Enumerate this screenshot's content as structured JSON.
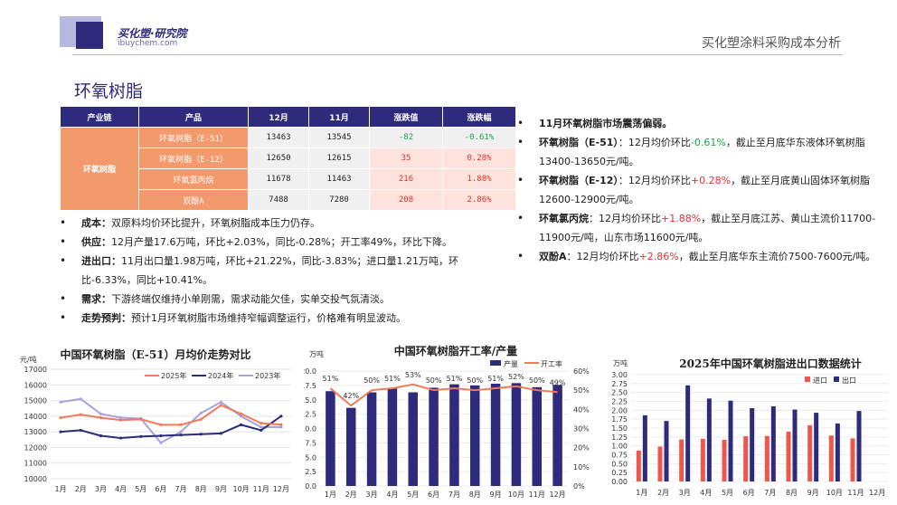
{
  "logo": {
    "name": "买化塑·研究院",
    "domain": "ibuychem.com"
  },
  "header": {
    "title": "买化塑涂料采购成本分析"
  },
  "page_title": "环氧树脂",
  "table": {
    "headers": [
      "产业链",
      "产品",
      "12月",
      "11月",
      "涨跌值",
      "涨跌幅"
    ],
    "chain": "环氧树脂",
    "rows": [
      {
        "product": "环氧树脂（E-51）",
        "dec": "13463",
        "nov": "13545",
        "chg": "-82",
        "pct": "-0.61%",
        "dir": "neg"
      },
      {
        "product": "环氧树脂（E-12）",
        "dec": "12650",
        "nov": "12615",
        "chg": "35",
        "pct": "0.28%",
        "dir": "pos"
      },
      {
        "product": "环氧氯丙烷",
        "dec": "11678",
        "nov": "11463",
        "chg": "216",
        "pct": "1.88%",
        "dir": "pos"
      },
      {
        "product": "双酚A",
        "dec": "7488",
        "nov": "7280",
        "chg": "208",
        "pct": "2.86%",
        "dir": "pos"
      }
    ]
  },
  "left_bullets": [
    {
      "label": "成本：",
      "text": "双原料均价环比提升，环氧树脂成本压力仍存。"
    },
    {
      "label": "供应：",
      "text": "12月产量17.6万吨，环比+2.03%，同比-0.28%；开工率49%，环比下降。"
    },
    {
      "label": "进出口：",
      "text": "11月出口量1.98万吨，环比+21.22%，同比-3.83%；进口量1.21万吨，环比-6.33%，同比+10.41%。"
    },
    {
      "label": "需求：",
      "text": "下游终端仅维持小单刚需，需求动能欠佳，实单交投气氛清淡。"
    },
    {
      "label": "走势预判：",
      "text": "预计1月环氧树脂市场维持窄幅调整运行，价格难有明显波动。"
    }
  ],
  "right_bullets": {
    "b1": "11月环氧树脂市场震荡偏弱。",
    "b2": {
      "label": "环氧树脂（E-51）",
      "pre": "：12月均价环比",
      "val": "-0.61%",
      "post": "，截止至月底华东液体环氧树脂13400-13650元/吨。"
    },
    "b3": {
      "label": "环氧树脂（E-12）",
      "pre": "：12月均价环比",
      "val": "+0.28%",
      "post": "，截止至月底黄山固体环氧树脂12600-12900元/吨。"
    },
    "b4": {
      "label": "环氧氯丙烷",
      "pre": "：12月均价环比",
      "val": "+1.88%",
      "post": "，截止至月底江苏、黄山主流价11700-11900元/吨，山东市场11600元/吨。"
    },
    "b5": {
      "label": "双酚A",
      "pre": "：12月均价环比",
      "val": "+2.86%",
      "post": "，截止至月底华东主流价7500-7600元/吨。"
    }
  },
  "chart_data": [
    {
      "type": "line",
      "title": "中国环氧树脂（E-51）月均价走势对比",
      "ylabel": "元/吨",
      "ylim": [
        10000,
        17000
      ],
      "categories": [
        "1月",
        "2月",
        "3月",
        "4月",
        "5月",
        "6月",
        "7月",
        "8月",
        "9月",
        "10月",
        "11月",
        "12月"
      ],
      "series": [
        {
          "name": "2025年",
          "color": "#f07a5a",
          "values": [
            13900,
            14100,
            13900,
            13750,
            13800,
            13450,
            13450,
            13800,
            14700,
            14150,
            13550,
            13460
          ]
        },
        {
          "name": "2024年",
          "color": "#2e2a7c",
          "values": [
            13000,
            13100,
            12750,
            12600,
            12700,
            12750,
            12800,
            12850,
            12900,
            13450,
            13100,
            14000
          ]
        },
        {
          "name": "2023年",
          "color": "#a6a3de",
          "values": [
            14900,
            15100,
            14150,
            13900,
            13850,
            12300,
            13000,
            14200,
            14900,
            14000,
            13300,
            13300
          ]
        }
      ]
    },
    {
      "type": "bar",
      "title": "中国环氧树脂开工率/产量",
      "ylabel": "万吨",
      "ylim": [
        0,
        20
      ],
      "y2lim": [
        0,
        60
      ],
      "categories": [
        "1月",
        "2月",
        "3月",
        "4月",
        "5月",
        "6月",
        "7月",
        "8月",
        "9月",
        "10月",
        "11月",
        "12月"
      ],
      "series": [
        {
          "name": "产量",
          "color": "#2e2a7c",
          "values": [
            16.5,
            13.6,
            16.3,
            17.0,
            16.3,
            17.1,
            17.7,
            17.5,
            17.8,
            17.9,
            17.2,
            17.6
          ]
        },
        {
          "name": "开工率",
          "color": "#f07a5a",
          "axis": "right",
          "labels": [
            "51%",
            "42%",
            "50%",
            "51%",
            "53%",
            "50%",
            "51%",
            "50%",
            "51%",
            "52%",
            "50%",
            "49%"
          ],
          "values": [
            51,
            42,
            50,
            51,
            53,
            50,
            51,
            50,
            51,
            52,
            50,
            49
          ]
        }
      ]
    },
    {
      "type": "bar",
      "title": "2025年中国环氧树脂进出口数据统计",
      "ylabel": "万吨",
      "ylim": [
        0,
        3
      ],
      "categories": [
        "1月",
        "2月",
        "3月",
        "4月",
        "5月",
        "6月",
        "7月",
        "8月",
        "9月",
        "10月",
        "11月",
        "12月"
      ],
      "series": [
        {
          "name": "进口",
          "color": "#f0574c",
          "values": [
            0.87,
            0.98,
            1.18,
            1.2,
            1.17,
            1.27,
            1.28,
            1.4,
            1.58,
            1.29,
            1.21,
            null
          ]
        },
        {
          "name": "出口",
          "color": "#2e2a7c",
          "values": [
            1.86,
            1.7,
            2.7,
            2.33,
            2.27,
            2.06,
            2.11,
            2.02,
            1.93,
            1.63,
            1.98,
            null
          ]
        }
      ]
    }
  ]
}
